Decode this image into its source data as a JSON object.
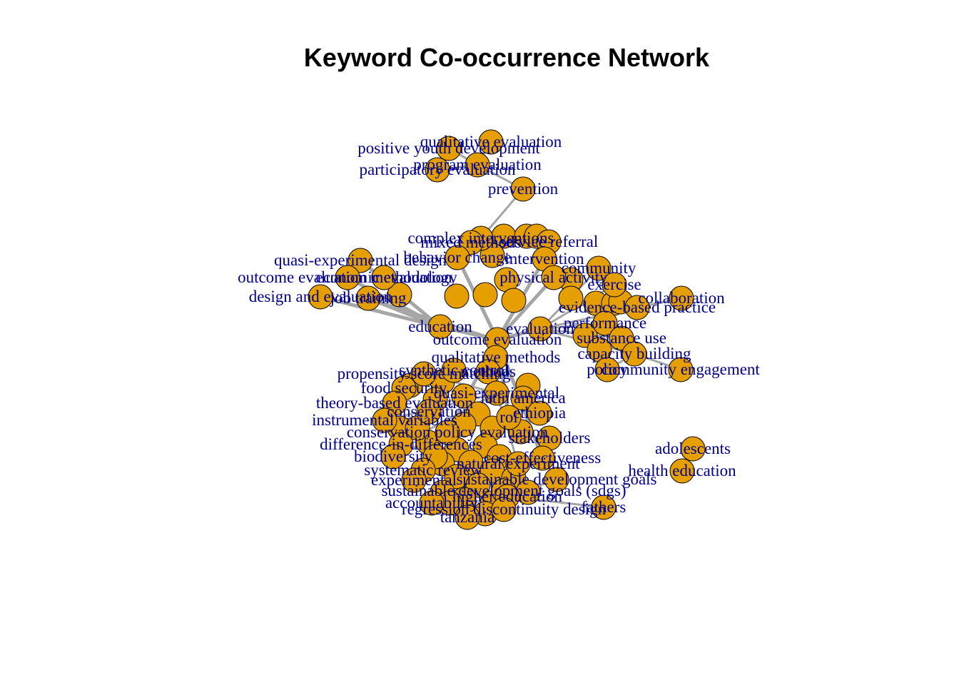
{
  "title": "Keyword Co-occurrence Network",
  "style": {
    "node_fill": "#E69F00",
    "node_stroke": "#000000",
    "edge_color": "#a6a6a6",
    "label_color": "#00008B",
    "background": "#ffffff"
  },
  "nodes": [
    {
      "id": "qualitative-evaluation",
      "label": "qualitative evaluation"
    },
    {
      "id": "positive-youth-development",
      "label": "positive youth development"
    },
    {
      "id": "program-evaluation",
      "label": "program evaluation"
    },
    {
      "id": "participatory-evaluation",
      "label": "participatory evaluation"
    },
    {
      "id": "prevention",
      "label": "prevention"
    },
    {
      "id": "complex-interventions",
      "label": "complex interventions"
    },
    {
      "id": "mixed-methods",
      "label": "mixed methods"
    },
    {
      "id": "service-referral",
      "label": "service referral"
    },
    {
      "id": "quasi-experimental-design",
      "label": "quasi-experimental design"
    },
    {
      "id": "behavior-change",
      "label": "behavior change"
    },
    {
      "id": "intervention",
      "label": "intervention"
    },
    {
      "id": "outcome-evaluation-methodology",
      "label": "outcome evaluation methodology"
    },
    {
      "id": "economic-evaluation",
      "label": "economic evaluation"
    },
    {
      "id": "physical-activity",
      "label": "physical activity"
    },
    {
      "id": "community",
      "label": "community"
    },
    {
      "id": "exercise",
      "label": "exercise"
    },
    {
      "id": "design-and-evaluation",
      "label": "design and evaluation"
    },
    {
      "id": "job-training",
      "label": "job training"
    },
    {
      "id": "collaboration",
      "label": "collaboration"
    },
    {
      "id": "evidence-based-practice",
      "label": "evidence-based practice"
    },
    {
      "id": "education",
      "label": "education"
    },
    {
      "id": "outcome-evaluation",
      "label": "outcome evaluation"
    },
    {
      "id": "evaluation",
      "label": "evaluation"
    },
    {
      "id": "performance",
      "label": "performance"
    },
    {
      "id": "substance-use",
      "label": "substance use"
    },
    {
      "id": "capacity-building",
      "label": "capacity building"
    },
    {
      "id": "policy",
      "label": "policy"
    },
    {
      "id": "community-engagement",
      "label": "community engagement"
    },
    {
      "id": "qualitative-methods",
      "label": "qualitative methods"
    },
    {
      "id": "propensity-score-matching",
      "label": "propensity score matching"
    },
    {
      "id": "synthetic-control",
      "label": "synthetic control"
    },
    {
      "id": "methods",
      "label": "methods"
    },
    {
      "id": "food-security",
      "label": "food security"
    },
    {
      "id": "quasi-experimental",
      "label": "quasi-experimental"
    },
    {
      "id": "latin-america",
      "label": "latin america"
    },
    {
      "id": "theory-based-evaluation",
      "label": "theory-based evaluation"
    },
    {
      "id": "conservation",
      "label": "conservation"
    },
    {
      "id": "ethiopia",
      "label": "ethiopia"
    },
    {
      "id": "instrumental-variables",
      "label": "instrumental variables"
    },
    {
      "id": "roi",
      "label": "roi"
    },
    {
      "id": "conservation-policy-evaluation",
      "label": "conservation policy evaluation"
    },
    {
      "id": "stakeholders",
      "label": "stakeholders"
    },
    {
      "id": "difference-in-differences",
      "label": "difference-in-differences"
    },
    {
      "id": "biodiversity",
      "label": "biodiversity"
    },
    {
      "id": "cost-effectiveness",
      "label": "cost-effectiveness"
    },
    {
      "id": "natural-experiment",
      "label": "natural experiment"
    },
    {
      "id": "systematic-review",
      "label": "systematic review"
    },
    {
      "id": "sustainable-development-goals",
      "label": "sustainable development goals"
    },
    {
      "id": "experimental",
      "label": "experimental"
    },
    {
      "id": "sustainable-development-goals-sdgs",
      "label": "sustainable development goals (sdgs)"
    },
    {
      "id": "accountability",
      "label": "accountability"
    },
    {
      "id": "higher-education",
      "label": "higher education"
    },
    {
      "id": "fathers",
      "label": "fathers"
    },
    {
      "id": "regression-discontinuity-design",
      "label": "regression discontinuity design"
    },
    {
      "id": "tanzania",
      "label": "tanzania"
    },
    {
      "id": "adolescents",
      "label": "adolescents"
    },
    {
      "id": "health-education",
      "label": "health education"
    }
  ],
  "edges": [
    [
      "qualitative-evaluation",
      "program-evaluation"
    ],
    [
      "positive-youth-development",
      "program-evaluation"
    ],
    [
      "participatory-evaluation",
      "program-evaluation"
    ],
    [
      "program-evaluation",
      "prevention"
    ],
    [
      "program-evaluation",
      "positive-youth-development"
    ],
    [
      "prevention",
      "complex-interventions"
    ],
    [
      "design-and-evaluation",
      "education"
    ],
    [
      "job-training",
      "education"
    ],
    [
      "outcome-evaluation-methodology",
      "education"
    ],
    [
      "quasi-experimental-design",
      "education"
    ],
    [
      "job-training",
      "outcome-evaluation"
    ],
    [
      "education",
      "outcome-evaluation"
    ],
    [
      "outcome-evaluation",
      "evaluation"
    ],
    [
      "outcome-evaluation",
      "intervention"
    ],
    [
      "outcome-evaluation",
      "behavior-change"
    ],
    [
      "outcome-evaluation",
      "physical-activity"
    ],
    [
      "evaluation",
      "exercise"
    ],
    [
      "evaluation",
      "community"
    ],
    [
      "evaluation",
      "substance-use"
    ],
    [
      "evaluation",
      "performance"
    ],
    [
      "evaluation",
      "evidence-based-practice"
    ],
    [
      "evaluation",
      "capacity-building"
    ],
    [
      "capacity-building",
      "community-engagement"
    ],
    [
      "capacity-building",
      "policy"
    ],
    [
      "evidence-based-practice",
      "collaboration"
    ],
    [
      "outcome-evaluation",
      "qualitative-methods"
    ],
    [
      "outcome-evaluation",
      "quasi-experimental"
    ],
    [
      "outcome-evaluation",
      "roi"
    ],
    [
      "outcome-evaluation",
      "conservation-policy-evaluation"
    ],
    [
      "outcome-evaluation",
      "cost-effectiveness"
    ],
    [
      "qualitative-methods",
      "methods"
    ],
    [
      "quasi-experimental",
      "difference-in-differences"
    ],
    [
      "quasi-experimental",
      "instrumental-variables"
    ],
    [
      "quasi-experimental",
      "propensity-score-matching"
    ],
    [
      "quasi-experimental",
      "natural-experiment"
    ],
    [
      "conservation-policy-evaluation",
      "biodiversity"
    ],
    [
      "conservation-policy-evaluation",
      "systematic-review"
    ],
    [
      "cost-effectiveness",
      "sustainable-development-goals"
    ],
    [
      "sustainable-development-goals",
      "higher-education"
    ],
    [
      "higher-education",
      "fathers"
    ],
    [
      "regression-discontinuity-design",
      "tanzania"
    ],
    [
      "adolescents",
      "health-education"
    ]
  ]
}
